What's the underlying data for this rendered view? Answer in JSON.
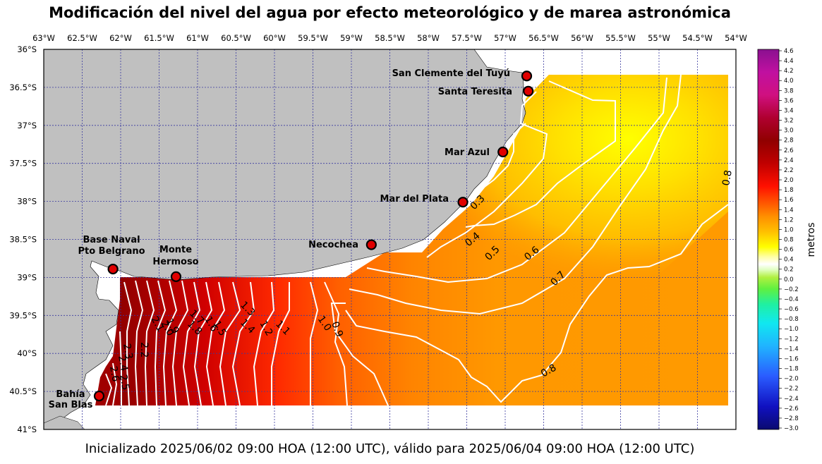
{
  "title": "Modificación del nivel del agua por efecto meteorológico y de marea astronómica",
  "footer": "Inicializado 2025/06/02 09:00 HOA (12:00 UTC), válido para 2025/06/04 09:00 HOA (12:00 UTC)",
  "lon_ticks": [
    "63°W",
    "62.5°W",
    "62°W",
    "61.5°W",
    "61°W",
    "60.5°W",
    "60°W",
    "59.5°W",
    "59°W",
    "58.5°W",
    "58°W",
    "57.5°W",
    "57°W",
    "56.5°W",
    "56°W",
    "55.5°W",
    "55°W",
    "54.5°W",
    "54°W"
  ],
  "lat_ticks": [
    "36°S",
    "36.5°S",
    "37°S",
    "37.5°S",
    "38°S",
    "38.5°S",
    "39°S",
    "39.5°S",
    "40°S",
    "40.5°S",
    "41°S"
  ],
  "colorbar": {
    "label": "metros",
    "ticks": [
      "4.6",
      "4.4",
      "4.2",
      "4.0",
      "3.8",
      "3.6",
      "3.4",
      "3.2",
      "3.0",
      "2.8",
      "2.6",
      "2.4",
      "2.2",
      "2.0",
      "1.8",
      "1.6",
      "1.4",
      "1.2",
      "1.0",
      "0.8",
      "0.6",
      "0.4",
      "0.2",
      "0.0",
      "−0.2",
      "−0.4",
      "−0.6",
      "−0.8",
      "−1.0",
      "−1.2",
      "−1.4",
      "−1.6",
      "−1.8",
      "−2.0",
      "−2.2",
      "−2.4",
      "−2.6",
      "−2.8",
      "−3.0"
    ],
    "colors": [
      "#0a0a70",
      "#1a1ad0",
      "#2a5cff",
      "#20b4ff",
      "#10e8f0",
      "#20f0a0",
      "#40f040",
      "#a0f040",
      "#d8ffb0",
      "#ffffff",
      "#ffffa0",
      "#ffff00",
      "#ffd000",
      "#ffa000",
      "#ff7000",
      "#ff2000",
      "#e00000",
      "#b00000",
      "#900000",
      "#a00040",
      "#d01080",
      "#c010a0",
      "#901090"
    ]
  },
  "locations": [
    {
      "name": "San Clemente del Tuyú",
      "lon": -56.72,
      "lat": -36.35
    },
    {
      "name": "Santa Teresita",
      "lon": -56.7,
      "lat": -36.55
    },
    {
      "name": "Mar Azul",
      "lon": -57.03,
      "lat": -37.35
    },
    {
      "name": "Mar del Plata",
      "lon": -57.55,
      "lat": -38.01
    },
    {
      "name": "Necochea",
      "lon": -58.74,
      "lat": -38.57
    },
    {
      "name": "Base Naval Pto Belgrano",
      "lon": -62.1,
      "lat": -38.89
    },
    {
      "name": "Monte Hermoso",
      "lon": -61.28,
      "lat": -38.99
    },
    {
      "name": "Bahía San Blas",
      "lon": -62.28,
      "lat": -40.56
    }
  ],
  "contour_labels": [
    "0.3",
    "0.4",
    "0.5",
    "0.6",
    "0.7",
    "0.8",
    "0.8",
    "0.9",
    "1.0",
    "1.1",
    "1.2",
    "1.3",
    "1.4",
    "1.5",
    "1.6",
    "1.7",
    "1.8",
    "1.9",
    "2.0",
    "2.1",
    "2.2",
    "2.3",
    "2.4",
    "2.5",
    "2.6"
  ]
}
